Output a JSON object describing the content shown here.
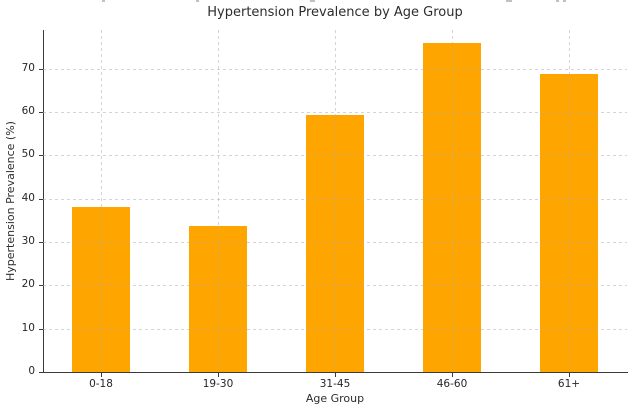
{
  "chart_data": {
    "type": "bar",
    "title": "Hypertension Prevalence by Age Group",
    "xlabel": "Age Group",
    "ylabel": "Hypertension Prevalence (%)",
    "categories": [
      "0-18",
      "19-30",
      "31-45",
      "46-60",
      "61+"
    ],
    "values": [
      38.0,
      33.6,
      59.2,
      75.8,
      68.8
    ],
    "yticks": [
      0,
      10,
      20,
      30,
      40,
      50,
      60,
      70
    ],
    "ylim": [
      0,
      78.9
    ],
    "legend": "none",
    "grid": "dashed, both axes, drawn over bars",
    "bar_color": "#FFA500",
    "grid_color": "#b0b0b0",
    "axis_color": "#3a3a3a",
    "text_color": "#262626",
    "background_color": "#ffffff"
  }
}
